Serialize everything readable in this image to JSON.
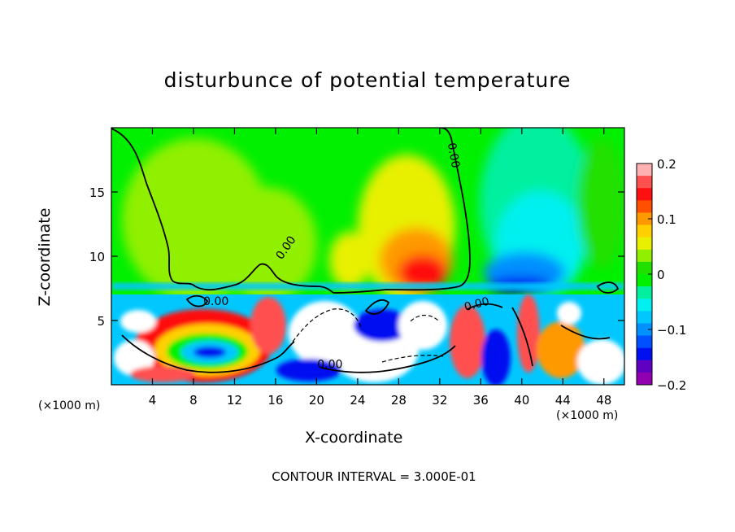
{
  "figure": {
    "title": "disturbunce of potential temperature",
    "footer": "CONTOUR INTERVAL = 3.000E-01",
    "x_unit_left": "(×1000 m)",
    "x_unit_right": "(×1000 m)"
  },
  "chart_data": {
    "type": "heatmap",
    "title": "disturbunce of potential temperature",
    "xlabel": "X-coordinate",
    "ylabel": "Z-coordinate",
    "x_unit": "(×1000 m)",
    "xlim": [
      0,
      50
    ],
    "ylim": [
      0,
      20
    ],
    "x_ticks": [
      4,
      8,
      12,
      16,
      20,
      24,
      28,
      32,
      36,
      40,
      44,
      48
    ],
    "y_ticks": [
      5,
      10,
      15
    ],
    "colorbar": {
      "range": [
        -0.2,
        0.2
      ],
      "tick_values": [
        0.2,
        0.1,
        0,
        -0.1,
        -0.2
      ],
      "tick_labels": [
        "0.2",
        "0.1",
        "0",
        "−0.1",
        "−0.2"
      ],
      "colors": [
        "#ffb0b0",
        "#ff5050",
        "#ff1010",
        "#ff5000",
        "#ff9900",
        "#ffd000",
        "#e8f000",
        "#90f000",
        "#20e000",
        "#00f000",
        "#00f0a0",
        "#00f0f0",
        "#00c8ff",
        "#0090ff",
        "#0050ff",
        "#0010f0",
        "#6000c0",
        "#9000b0"
      ]
    },
    "contour_interval": "3.000E-01",
    "contour_labels": [
      {
        "text": "0.00",
        "x": 33.0,
        "z": 17.8,
        "rotate": 80
      },
      {
        "text": "0.00",
        "x": 17.3,
        "z": 10.5,
        "rotate": -55
      },
      {
        "text": "0.00",
        "x": 10.2,
        "z": 6.2,
        "rotate": 0
      },
      {
        "text": "0.00",
        "x": 21.3,
        "z": 1.3,
        "rotate": 0
      },
      {
        "text": "0.00",
        "x": 35.7,
        "z": 6.0,
        "rotate": -15
      }
    ]
  }
}
